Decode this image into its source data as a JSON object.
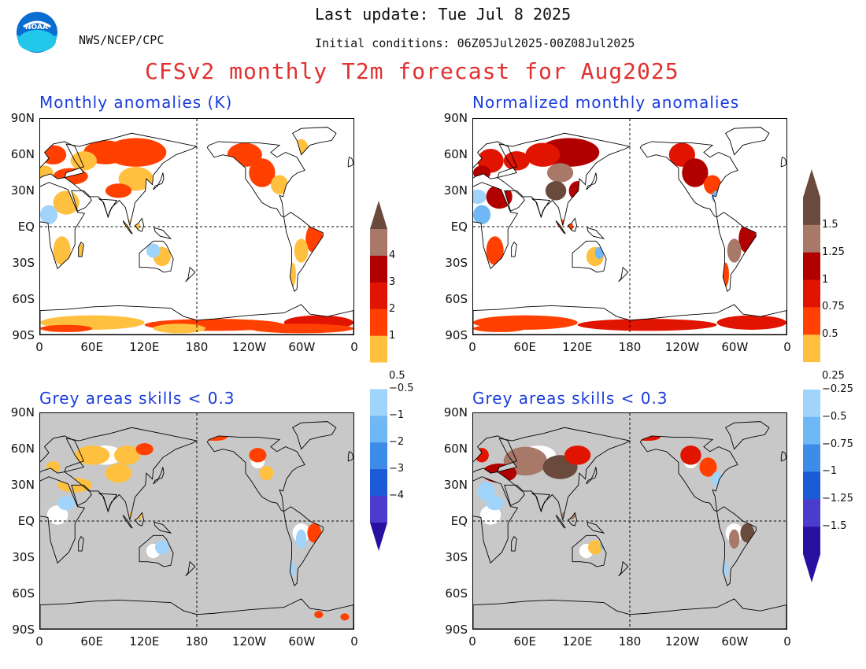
{
  "header": {
    "last_update": "Last update: Tue Jul 8 2025",
    "org": "NWS/NCEP/CPC",
    "initial_conditions": "Initial conditions: 06Z05Jul2025-00Z08Jul2025",
    "title": "CFSv2 monthly T2m forecast for Aug2025",
    "logo_text": "NOAA"
  },
  "panels": [
    {
      "title": "Monthly anomalies (K)"
    },
    {
      "title": "Normalized monthly anomalies"
    },
    {
      "title": "Grey areas skills < 0.3"
    },
    {
      "title": "Grey areas skills < 0.3"
    }
  ],
  "axes": {
    "lat_labels": [
      "90N",
      "60N",
      "30N",
      "EQ",
      "30S",
      "60S",
      "90S"
    ],
    "lon_labels": [
      "0",
      "60E",
      "120E",
      "180",
      "120W",
      "60W",
      "0"
    ]
  },
  "colorbar_left": {
    "labels": [
      "4",
      "3",
      "2",
      "1",
      "0.5",
      "−0.5",
      "−1",
      "−2",
      "−3",
      "−4"
    ]
  },
  "colorbar_right": {
    "labels": [
      "1.5",
      "1.25",
      "1",
      "0.75",
      "0.5",
      "0.25",
      "−0.25",
      "−0.5",
      "−0.75",
      "−1",
      "−1.25",
      "−1.5"
    ]
  },
  "colors": {
    "title_red": "#e03030",
    "panel_title_blue": "#1a3cdc",
    "grey_mask": "#c8c8c8",
    "pos_levels": [
      "#ffc040",
      "#ff4000",
      "#e01400",
      "#b00000",
      "#a87868",
      "#6b4a3e"
    ],
    "neg_levels": [
      "#a0d4fa",
      "#70b8f5",
      "#3c8ce8",
      "#1c5ad8",
      "#4b3ccc",
      "#2a10a0"
    ]
  }
}
